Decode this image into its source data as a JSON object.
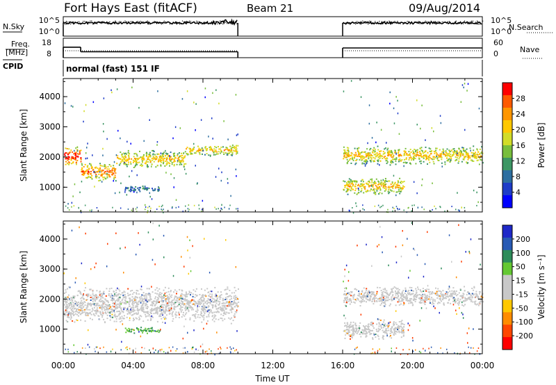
{
  "header": {
    "title": "Fort Hays East (fitACF)",
    "beam": "Beam 21",
    "date": "09/Aug/2014"
  },
  "noise_panel": {
    "left_label": "N.Sky",
    "left_ticks": [
      "10^5",
      "10^0"
    ],
    "right_label": "N.Search",
    "right_ticks": [
      "10^5",
      "10^0"
    ]
  },
  "freq_panel": {
    "left_label_line1": "Freq.",
    "left_label_line2": "[MHz]",
    "left_ticks": [
      "18",
      "8"
    ],
    "right_label": "Nave",
    "right_ticks": [
      "60",
      "0"
    ]
  },
  "cpid_panel": {
    "label": "CPID",
    "value": "normal (fast) 151 IF"
  },
  "x_axis": {
    "label": "Time UT",
    "ticks": [
      "00:00",
      "04:00",
      "08:00",
      "12:00",
      "16:00",
      "20:00",
      "00:00"
    ]
  },
  "power_panel": {
    "ylabel": "Slant Range [km]",
    "yticks": [
      "4000",
      "3000",
      "2000",
      "1000"
    ],
    "colorbar_label": "Power [dB]",
    "colorbar_ticks": [
      "28",
      "24",
      "20",
      "16",
      "12",
      "8",
      "4"
    ],
    "colorbar_colors": [
      "#ff0000",
      "#ff5a00",
      "#ff9600",
      "#ffc800",
      "#d2dc28",
      "#78be3c",
      "#3c9664",
      "#2d6ea0",
      "#1e3cc8",
      "#0000ff"
    ]
  },
  "velocity_panel": {
    "ylabel": "Slant Range [km]",
    "yticks": [
      "4000",
      "3000",
      "2000",
      "1000"
    ],
    "colorbar_label": "Velocity [m s⁻¹]",
    "colorbar_ticks": [
      "200",
      "100",
      "50",
      "15",
      "-15",
      "-50",
      "-100",
      "-200"
    ],
    "colorbar_colors": [
      "#1e28c8",
      "#285ab4",
      "#2d8c5a",
      "#64c832",
      "#c8c8c8",
      "#c8c8c8",
      "#ffc800",
      "#ff8c00",
      "#ff4600",
      "#ff0000"
    ]
  },
  "chart_data": {
    "type": "heatmap",
    "title": "Fort Hays East (fitACF)",
    "subtitle": "Beam 21",
    "date": "09/Aug/2014",
    "xlabel": "Time UT",
    "x_range_hours": [
      0,
      24
    ],
    "data_gap_hours": [
      10.0,
      16.0
    ],
    "ylabel": "Slant Range [km]",
    "ylim_km": [
      180,
      4600
    ],
    "panels": [
      {
        "name": "Power [dB]",
        "scale": [
          0,
          30
        ],
        "scatter_bands": [
          {
            "start_h": 0.0,
            "end_h": 1.0,
            "range_km": [
              1700,
              2400
            ],
            "value": 26
          },
          {
            "start_h": 1.0,
            "end_h": 3.0,
            "range_km": [
              1200,
              1850
            ],
            "value": 22
          },
          {
            "start_h": 3.0,
            "end_h": 7.0,
            "range_km": [
              1650,
              2250
            ],
            "value": 18
          },
          {
            "start_h": 7.0,
            "end_h": 10.0,
            "range_km": [
              2050,
              2450
            ],
            "value": 18
          },
          {
            "start_h": 3.5,
            "end_h": 5.5,
            "range_km": [
              850,
              1100
            ],
            "value": 8
          },
          {
            "start_h": 16.0,
            "end_h": 19.5,
            "range_km": [
              750,
              1350
            ],
            "value": 18
          },
          {
            "start_h": 16.0,
            "end_h": 24.0,
            "range_km": [
              1750,
              2400
            ],
            "value": 18
          }
        ]
      },
      {
        "name": "Velocity [m s-1]",
        "scale": [
          -200,
          200
        ],
        "scatter_bands": [
          {
            "start_h": 0.0,
            "end_h": 10.0,
            "range_km": [
              1200,
              2450
            ],
            "value": 0
          },
          {
            "start_h": 3.5,
            "end_h": 5.5,
            "range_km": [
              850,
              1100
            ],
            "value": 30
          },
          {
            "start_h": 16.0,
            "end_h": 19.5,
            "range_km": [
              650,
              1350
            ],
            "value": 0
          },
          {
            "start_h": 16.0,
            "end_h": 24.0,
            "range_km": [
              1750,
              2450
            ],
            "value": 0
          }
        ]
      }
    ],
    "noise_sky": {
      "scale": "log",
      "ticks": [
        "10^0",
        "10^5"
      ]
    },
    "frequency_mhz": {
      "ticks": [
        8,
        18
      ],
      "segments": [
        {
          "start_h": 0,
          "end_h": 1,
          "value": 13.5
        },
        {
          "start_h": 1,
          "end_h": 10,
          "value": 10.5
        },
        {
          "start_h": 16,
          "end_h": 24,
          "value": 13
        }
      ]
    },
    "nave": {
      "ticks": [
        0,
        60
      ],
      "typical": 25
    },
    "cpid": "normal (fast) 151 IF"
  }
}
